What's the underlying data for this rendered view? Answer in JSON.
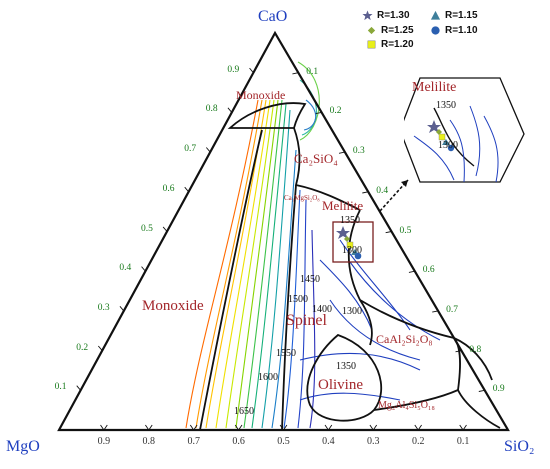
{
  "chart_data": {
    "type": "ternary",
    "vertices": {
      "top": "CaO",
      "left": "MgO",
      "right": "SiO₂"
    },
    "tick_labels": [
      "0.1",
      "0.2",
      "0.3",
      "0.4",
      "0.5",
      "0.6",
      "0.7",
      "0.8",
      "0.9"
    ],
    "bottom_tick_labels": [
      "0.9",
      "0.8",
      "0.7",
      "0.6",
      "0.5",
      "0.4",
      "0.3",
      "0.2",
      "0.1"
    ],
    "regions": {
      "monoxide_top": "Monoxide",
      "ca2sio4": "Ca₂SiO₄",
      "ca3mgsi2o8": "Ca₃MgSi₂O₈",
      "melilite": "Melilite",
      "monoxide_left": "Monoxide",
      "spinel": "Spinel",
      "caal2si2o8": "CaAl₂Si₂O₈",
      "olivine": "Olivine",
      "mg2al4si5o18": "Mg₂Al₄Si₅O₁₈"
    },
    "isotherms": [
      "1350",
      "1300",
      "1450",
      "1500",
      "1400",
      "1300",
      "1550",
      "1600",
      "1650",
      "1350"
    ],
    "legend": [
      {
        "label": "R=1.30",
        "marker": "star",
        "color": "#5b5f8f"
      },
      {
        "label": "R=1.25",
        "marker": "diamond",
        "color": "#8aa83a"
      },
      {
        "label": "R=1.20",
        "marker": "square",
        "color": "#e8ef1a"
      },
      {
        "label": "R=1.15",
        "marker": "triangle",
        "color": "#3f7f9b"
      },
      {
        "label": "R=1.10",
        "marker": "circle",
        "color": "#2a5fb0"
      }
    ],
    "inset": {
      "title": "Melilite",
      "isotherms": [
        "1350",
        "1300"
      ]
    },
    "colors": {
      "vertex_text": "#1f3fbf",
      "region_text": "#a3262a",
      "tick_text": "#197a1c",
      "inset_frame": "#7a1f1f"
    }
  }
}
